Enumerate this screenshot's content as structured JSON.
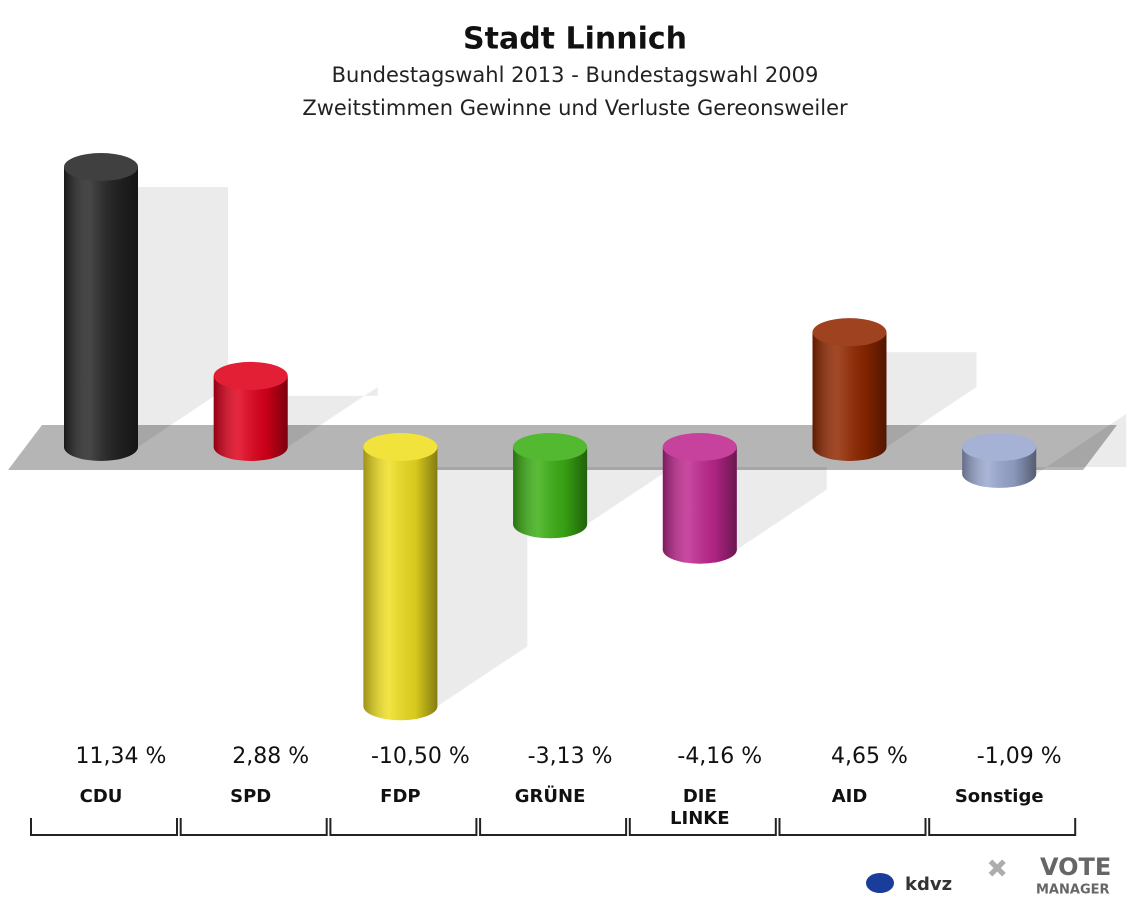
{
  "chart_data": {
    "type": "bar",
    "title": "Stadt Linnich",
    "subtitle": [
      "Bundestagswahl 2013 - Bundestagswahl 2009",
      "Zweitstimmen Gewinne und Verluste Gereonsweiler"
    ],
    "categories": [
      "CDU",
      "SPD",
      "FDP",
      "GRÜNE",
      "DIE LINKE",
      "AID",
      "Sonstige"
    ],
    "values": [
      11.34,
      2.88,
      -10.5,
      -3.13,
      -4.16,
      4.65,
      -1.09
    ],
    "value_labels": [
      "11,34 %",
      "2,88 %",
      "-10,50 %",
      "-3,13 %",
      "-4,16 %",
      "4,65 %",
      "-1,09 %"
    ],
    "colors": [
      "#262626",
      "#e0001b",
      "#f0e020",
      "#3cb014",
      "#c02890",
      "#922800",
      "#9aa8d0"
    ],
    "logo": {
      "left": "kdvz",
      "right": [
        "VOTE",
        "MANAGER"
      ]
    }
  }
}
